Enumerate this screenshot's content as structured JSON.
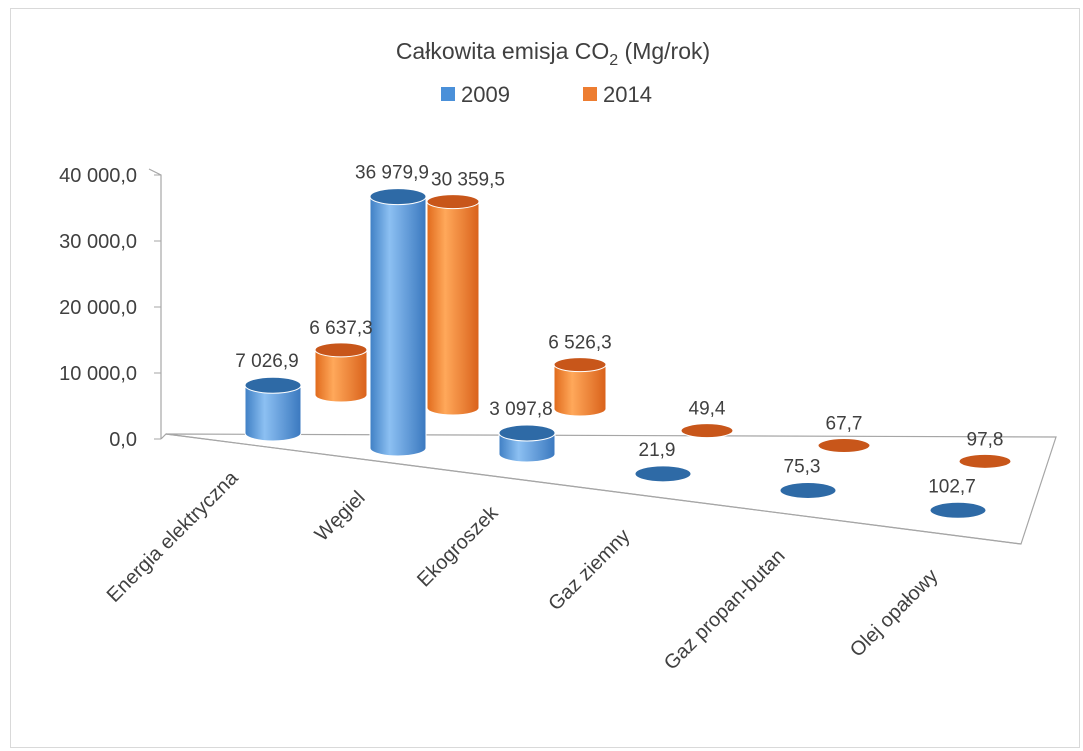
{
  "chart_data": {
    "type": "bar",
    "title_main": "Całkowita emisja CO",
    "title_sub": "2",
    "title_tail": " (Mg/rok)",
    "categories": [
      "Energia elektryczna",
      "Węgiel",
      "Ekogroszek",
      "Gaz ziemny",
      "Gaz propan-butan",
      "Olej opałowy"
    ],
    "series": [
      {
        "name": "2009",
        "color": "#4a90d9",
        "values": [
          7026.9,
          36979.9,
          3097.8,
          21.9,
          75.3,
          102.7
        ],
        "labels": [
          "7 026,9",
          "36 979,9",
          "3 097,8",
          "21,9",
          "75,3",
          "102,7"
        ]
      },
      {
        "name": "2014",
        "color": "#ed7d31",
        "values": [
          6637.3,
          30359.5,
          6526.3,
          49.4,
          67.7,
          97.8
        ],
        "labels": [
          "6 637,3",
          "30 359,5",
          "6 526,3",
          "49,4",
          "67,7",
          "97,8"
        ]
      }
    ],
    "yticks": [
      "0,0",
      "10 000,0",
      "20 000,0",
      "30 000,0",
      "40 000,0"
    ],
    "ylim": [
      0,
      40000
    ],
    "legend_position": "top",
    "grid": false
  }
}
